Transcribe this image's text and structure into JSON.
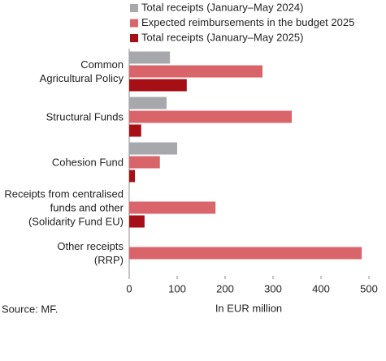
{
  "chart_data": {
    "type": "bar",
    "orientation": "horizontal",
    "categories": [
      "Common\nAgricultural Policy",
      "Structural Funds",
      "Cohesion Fund",
      "Receipts from centralised\nfunds and other\n(Solidarity Fund EU)",
      "Other receipts\n(RRP)"
    ],
    "series": [
      {
        "name": "Total receipts (January–May 2024)",
        "color": "#a6a8ab",
        "values": [
          85,
          78,
          100,
          1,
          0
        ]
      },
      {
        "name": "Expected reimbursements in the budget 2025",
        "color": "#d9646a",
        "values": [
          278,
          339,
          64,
          180,
          485
        ]
      },
      {
        "name": "Total receipts (January–May 2025)",
        "color": "#a50f15",
        "values": [
          120,
          25,
          12,
          32,
          0
        ]
      }
    ],
    "xlim": [
      0,
      500
    ],
    "xticks": [
      0,
      100,
      200,
      300,
      400,
      500
    ],
    "xlabel": "In EUR million",
    "source": "Source: MF.",
    "legend": "top"
  }
}
